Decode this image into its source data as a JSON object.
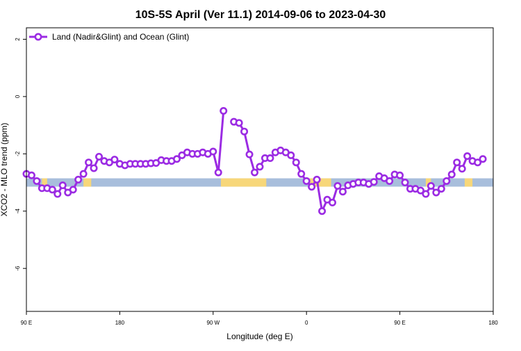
{
  "chart_data": {
    "type": "line",
    "title": "10S-5S April (Ver 11.1)   2014-09-06 to 2023-04-30",
    "xlabel": "Longitude (deg E)",
    "ylabel": "XCO2 - MLO trend (ppm)",
    "xlim": [
      90,
      450
    ],
    "ylim": [
      -7.5,
      2.4
    ],
    "x_ticks": [
      90,
      162,
      234,
      306,
      378,
      450
    ],
    "x_tick_labels": [
      "90 E",
      "180",
      "90 W",
      "0",
      "90 E",
      "180"
    ],
    "y_ticks": [
      2,
      0,
      -2,
      -4,
      -6
    ],
    "y_tick_labels": [
      "2",
      "0",
      "-2",
      "-4",
      "-6"
    ],
    "grid": false,
    "legend_position": "top-left",
    "series": [
      {
        "name": "Land (Nadir&Glint) and Ocean (Glint)",
        "color": "#9b2be3",
        "segments": [
          {
            "x": [
              90,
              94,
              98,
              102,
              106,
              110,
              114,
              118,
              122,
              126,
              130,
              134,
              138,
              142,
              146,
              150,
              154,
              158,
              162,
              166,
              170,
              174,
              178,
              182,
              186,
              190,
              194,
              198,
              202,
              206,
              210,
              214,
              218,
              222,
              226,
              230,
              234,
              238,
              242,
              246
            ],
            "y": [
              -2.7,
              -2.75,
              -2.95,
              -3.2,
              -3.2,
              -3.25,
              -3.4,
              -3.1,
              -3.35,
              -3.25,
              -2.9,
              -2.7,
              -2.3,
              -2.5,
              -2.1,
              -2.25,
              -2.3,
              -2.2,
              -2.35,
              -2.4,
              -2.35,
              -2.35,
              -2.35,
              -2.35,
              -2.33,
              -2.32,
              -2.22,
              -2.25,
              -2.25,
              -2.18,
              -2.05,
              -1.95,
              -2.0,
              -2.0,
              -1.95,
              -2.0,
              -1.92,
              -2.65,
              -0.5,
              null
            ]
          },
          {
            "x": [
              250,
              254,
              258,
              262,
              266,
              270,
              274,
              278,
              282,
              286,
              290,
              294,
              298,
              302,
              306,
              310,
              314,
              318,
              322,
              326,
              330,
              334,
              338,
              342,
              346,
              350,
              354,
              358,
              362,
              366,
              370,
              374,
              378,
              382,
              386,
              390,
              394,
              398,
              402,
              406,
              410,
              414,
              418,
              422,
              426,
              430,
              434,
              438,
              442,
              446,
              450
            ],
            "y": [
              -0.88,
              -0.92,
              -1.22,
              -2.02,
              -2.65,
              -2.45,
              -2.15,
              -2.15,
              -1.95,
              -1.88,
              -1.95,
              -2.05,
              -2.3,
              -2.7,
              -2.95,
              -3.15,
              -2.9,
              -4.0,
              -3.6,
              -3.7,
              -3.12,
              -3.32,
              -3.1,
              -3.05,
              -3.0,
              -3.0,
              -3.05,
              -2.98,
              -2.78,
              -2.85,
              -2.95,
              -2.72,
              -2.75,
              -3.0,
              -3.22,
              -3.22,
              -3.28,
              -3.4,
              -3.12,
              -3.35,
              -3.22,
              -2.95,
              -2.72,
              -2.3,
              -2.52,
              -2.08,
              -2.25,
              -2.3,
              -2.18,
              null,
              null
            ]
          }
        ]
      }
    ],
    "surface_band": {
      "y": -3.0,
      "ocean_color": "#a8bedc",
      "land_color": "#f7d77a",
      "land_ranges": [
        [
          102,
          106
        ],
        [
          134,
          140
        ],
        [
          240,
          275
        ],
        [
          308,
          325
        ],
        [
          398,
          402
        ],
        [
          428,
          434
        ]
      ]
    }
  }
}
